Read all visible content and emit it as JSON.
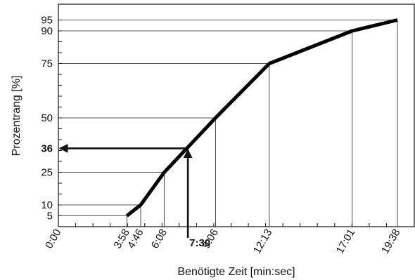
{
  "chart_data": {
    "type": "line",
    "xlabel": "Benötigte Zeit [min:sec]",
    "ylabel": "Prozentrang [%]",
    "xlim": [
      0,
      1200
    ],
    "ylim": [
      0,
      100
    ],
    "grid": false,
    "x_tick_labels": [
      "0:00",
      "3:58",
      "4:46",
      "6:08",
      "7:30",
      "9:06",
      "12:13",
      "17:01",
      "19:38"
    ],
    "x_tick_values": [
      0,
      238,
      286,
      368,
      450,
      546,
      733,
      1021,
      1178
    ],
    "y_tick_labels": [
      "5",
      "10",
      "25",
      "36",
      "50",
      "75",
      "90",
      "95"
    ],
    "y_tick_values": [
      5,
      10,
      25,
      36,
      50,
      75,
      90,
      95
    ],
    "series": [
      {
        "x": [
          238,
          286,
          368,
          546,
          733,
          1021,
          1178
        ],
        "y": [
          5,
          10,
          25,
          50,
          75,
          90,
          95
        ]
      }
    ],
    "highlight": {
      "x_label": "7:30",
      "x": 450,
      "y_label": "36",
      "y": 36
    }
  }
}
